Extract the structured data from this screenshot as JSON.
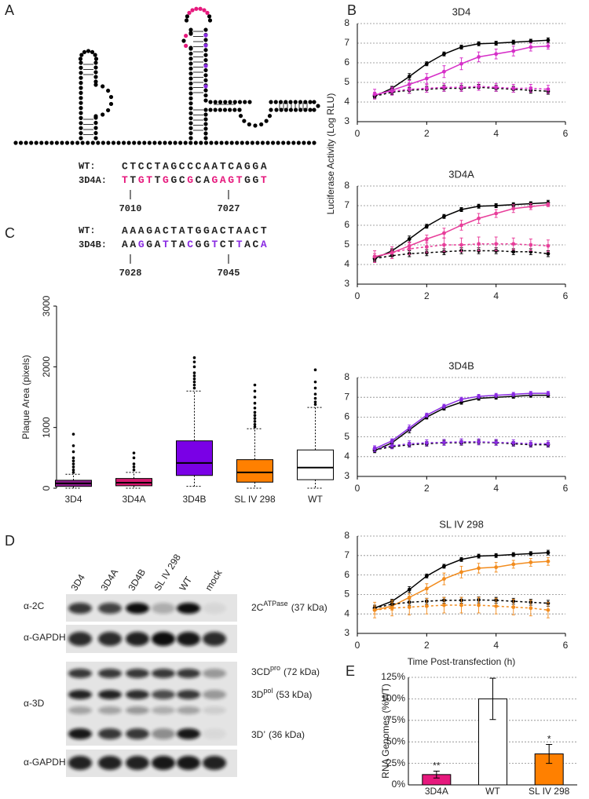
{
  "panel_labels": [
    "A",
    "B",
    "C",
    "D",
    "E"
  ],
  "panel_a": {
    "block_1": {
      "rows": [
        {
          "label": "WT:",
          "sequence": "CTCCTAGCCCAATCAGGA"
        },
        {
          "label": "3D4A:",
          "sequence": "TTGTTGGCGCAGAGTGGT",
          "color": "#e6197d"
        }
      ],
      "start": 7010,
      "end": 7027
    },
    "block_2": {
      "rows": [
        {
          "label": "WT:",
          "sequence": "AAAGACTATGGACTAACT"
        },
        {
          "label": "3D4B:",
          "sequence": "AAGGATTACGGTCTTACA",
          "color": "#8a2be2"
        }
      ],
      "start": 7028,
      "end": 7045
    }
  },
  "panel_d": {
    "lanes": [
      "3D4",
      "3D4A",
      "3D4B",
      "SL IV 298",
      "WT",
      "mock"
    ],
    "antibodies": [
      "α-2C",
      "α-GAPDH",
      "α-3D",
      "α-GAPDH"
    ],
    "bands": [
      {
        "name": "2C",
        "sup": "ATPase",
        "detail": "(37 kDa)"
      },
      {
        "name": "3CD",
        "sup": "pro",
        "detail": "(72 kDa)"
      },
      {
        "name": "3D",
        "sup": "pol",
        "detail": "(53 kDa)"
      },
      {
        "name": "3D’",
        "detail": "(36 kDa)"
      }
    ]
  },
  "chart_data": [
    {
      "type": "line",
      "title": "3D4",
      "ylabel": "Luciferase Activity (Log RLU)",
      "x": [
        0.5,
        1,
        1.5,
        2,
        2.5,
        3,
        3.5,
        4,
        4.5,
        5,
        5.5
      ],
      "xlim": [
        0,
        6
      ],
      "xticks": [
        0,
        2,
        4,
        6
      ],
      "ylim": [
        3,
        8
      ],
      "yticks": [
        3,
        4,
        5,
        6,
        7,
        8
      ],
      "grid": true,
      "series": [
        {
          "color": "#000000",
          "dashed": false,
          "values": [
            4.3,
            4.7,
            5.3,
            5.95,
            6.45,
            6.8,
            6.97,
            7.0,
            7.05,
            7.1,
            7.15
          ],
          "errors": [
            0.1,
            0.1,
            0.15,
            0.1,
            0.1,
            0.1,
            0.1,
            0.1,
            0.1,
            0.1,
            0.12
          ]
        },
        {
          "color": "#d62fc8",
          "dashed": false,
          "values": [
            4.35,
            4.6,
            4.9,
            5.2,
            5.55,
            5.95,
            6.3,
            6.45,
            6.6,
            6.8,
            6.85
          ],
          "errors": [
            0.15,
            0.15,
            0.2,
            0.25,
            0.3,
            0.3,
            0.25,
            0.25,
            0.25,
            0.2,
            0.15
          ]
        },
        {
          "color": "#000000",
          "dashed": true,
          "values": [
            4.3,
            4.5,
            4.6,
            4.65,
            4.7,
            4.7,
            4.75,
            4.7,
            4.65,
            4.6,
            4.55
          ],
          "errors": [
            0.1,
            0.12,
            0.15,
            0.15,
            0.15,
            0.15,
            0.15,
            0.15,
            0.15,
            0.15,
            0.15
          ]
        },
        {
          "color": "#d62fc8",
          "dashed": true,
          "values": [
            4.4,
            4.55,
            4.65,
            4.7,
            4.75,
            4.75,
            4.8,
            4.75,
            4.7,
            4.7,
            4.65
          ],
          "errors": [
            0.25,
            0.2,
            0.2,
            0.2,
            0.2,
            0.2,
            0.2,
            0.2,
            0.2,
            0.2,
            0.2
          ]
        }
      ]
    },
    {
      "type": "line",
      "title": "3D4A",
      "x": [
        0.5,
        1,
        1.5,
        2,
        2.5,
        3,
        3.5,
        4,
        4.5,
        5,
        5.5
      ],
      "xlim": [
        0,
        6
      ],
      "xticks": [
        0,
        2,
        4,
        6
      ],
      "ylim": [
        3,
        8
      ],
      "yticks": [
        3,
        4,
        5,
        6,
        7,
        8
      ],
      "grid": true,
      "series": [
        {
          "color": "#000000",
          "dashed": false,
          "values": [
            4.3,
            4.7,
            5.3,
            5.95,
            6.45,
            6.8,
            6.97,
            7.0,
            7.05,
            7.1,
            7.15
          ],
          "errors": [
            0.1,
            0.1,
            0.15,
            0.1,
            0.1,
            0.1,
            0.1,
            0.1,
            0.1,
            0.1,
            0.12
          ]
        },
        {
          "color": "#e83e9a",
          "dashed": false,
          "values": [
            4.4,
            4.6,
            4.95,
            5.3,
            5.6,
            6.0,
            6.35,
            6.6,
            6.85,
            6.95,
            7.05
          ],
          "errors": [
            0.15,
            0.15,
            0.2,
            0.2,
            0.25,
            0.25,
            0.25,
            0.2,
            0.2,
            0.15,
            0.1
          ]
        },
        {
          "color": "#000000",
          "dashed": true,
          "values": [
            4.3,
            4.45,
            4.55,
            4.6,
            4.65,
            4.7,
            4.7,
            4.7,
            4.65,
            4.65,
            4.55
          ],
          "errors": [
            0.15,
            0.15,
            0.15,
            0.15,
            0.15,
            0.15,
            0.15,
            0.15,
            0.15,
            0.15,
            0.15
          ]
        },
        {
          "color": "#e83e9a",
          "dashed": true,
          "values": [
            4.4,
            4.6,
            4.8,
            4.9,
            5.0,
            5.0,
            5.05,
            5.05,
            5.05,
            5.0,
            4.95
          ],
          "errors": [
            0.3,
            0.3,
            0.3,
            0.3,
            0.35,
            0.35,
            0.35,
            0.35,
            0.3,
            0.3,
            0.3
          ]
        }
      ]
    },
    {
      "type": "line",
      "title": "3D4B",
      "x": [
        0.5,
        1,
        1.5,
        2,
        2.5,
        3,
        3.5,
        4,
        4.5,
        5,
        5.5
      ],
      "xlim": [
        0,
        6
      ],
      "xticks": [
        0,
        2,
        4,
        6
      ],
      "ylim": [
        3,
        8
      ],
      "yticks": [
        3,
        4,
        5,
        6,
        7,
        8
      ],
      "grid": true,
      "series": [
        {
          "color": "#000000",
          "dashed": false,
          "values": [
            4.3,
            4.7,
            5.35,
            6.0,
            6.45,
            6.75,
            6.95,
            7.0,
            7.05,
            7.1,
            7.1
          ],
          "errors": [
            0.1,
            0.1,
            0.15,
            0.1,
            0.1,
            0.1,
            0.1,
            0.1,
            0.1,
            0.1,
            0.1
          ]
        },
        {
          "color": "#8a2be2",
          "dashed": false,
          "values": [
            4.4,
            4.8,
            5.45,
            6.1,
            6.55,
            6.9,
            7.05,
            7.1,
            7.15,
            7.2,
            7.2
          ],
          "errors": [
            0.1,
            0.1,
            0.15,
            0.1,
            0.1,
            0.1,
            0.1,
            0.1,
            0.1,
            0.1,
            0.1
          ]
        },
        {
          "color": "#000000",
          "dashed": true,
          "values": [
            4.35,
            4.5,
            4.6,
            4.65,
            4.7,
            4.7,
            4.72,
            4.7,
            4.65,
            4.6,
            4.6
          ],
          "errors": [
            0.1,
            0.1,
            0.12,
            0.12,
            0.12,
            0.12,
            0.12,
            0.12,
            0.12,
            0.12,
            0.12
          ]
        },
        {
          "color": "#8a2be2",
          "dashed": true,
          "values": [
            4.4,
            4.55,
            4.65,
            4.7,
            4.72,
            4.75,
            4.75,
            4.72,
            4.7,
            4.65,
            4.65
          ],
          "errors": [
            0.15,
            0.15,
            0.15,
            0.15,
            0.15,
            0.15,
            0.15,
            0.15,
            0.15,
            0.15,
            0.15
          ]
        }
      ]
    },
    {
      "type": "line",
      "title": "SL IV 298",
      "xlabel": "Time Post-transfection (h)",
      "x": [
        0.5,
        1,
        1.5,
        2,
        2.5,
        3,
        3.5,
        4,
        4.5,
        5,
        5.5
      ],
      "xlim": [
        0,
        6
      ],
      "xticks": [
        0,
        2,
        4,
        6
      ],
      "ylim": [
        3,
        8
      ],
      "yticks": [
        3,
        4,
        5,
        6,
        7,
        8
      ],
      "grid": true,
      "series": [
        {
          "color": "#000000",
          "dashed": false,
          "values": [
            4.3,
            4.65,
            5.25,
            5.95,
            6.45,
            6.8,
            6.97,
            7.0,
            7.05,
            7.1,
            7.15
          ],
          "errors": [
            0.1,
            0.1,
            0.15,
            0.1,
            0.1,
            0.1,
            0.1,
            0.1,
            0.1,
            0.1,
            0.12
          ]
        },
        {
          "color": "#f28c1e",
          "dashed": false,
          "values": [
            4.2,
            4.4,
            4.85,
            5.3,
            5.8,
            6.15,
            6.35,
            6.4,
            6.55,
            6.65,
            6.7
          ],
          "errors": [
            0.2,
            0.2,
            0.2,
            0.25,
            0.3,
            0.3,
            0.25,
            0.25,
            0.2,
            0.2,
            0.2
          ]
        },
        {
          "color": "#000000",
          "dashed": true,
          "values": [
            4.3,
            4.5,
            4.6,
            4.65,
            4.7,
            4.7,
            4.72,
            4.7,
            4.65,
            4.6,
            4.55
          ],
          "errors": [
            0.15,
            0.15,
            0.15,
            0.15,
            0.15,
            0.15,
            0.15,
            0.15,
            0.15,
            0.15,
            0.15
          ]
        },
        {
          "color": "#f28c1e",
          "dashed": true,
          "values": [
            4.2,
            4.3,
            4.35,
            4.4,
            4.45,
            4.45,
            4.45,
            4.4,
            4.35,
            4.3,
            4.2
          ],
          "errors": [
            0.4,
            0.4,
            0.4,
            0.4,
            0.4,
            0.4,
            0.4,
            0.4,
            0.4,
            0.4,
            0.4
          ]
        }
      ]
    },
    {
      "type": "box",
      "ylabel": "Plaque Area (pixels)",
      "categories": [
        "3D4",
        "3D4A",
        "3D4B",
        "SL IV 298",
        "WT"
      ],
      "colors": [
        "#8e1b8e",
        "#d6186f",
        "#7a00e6",
        "#ff8000",
        "#ffffff"
      ],
      "ylim": [
        0,
        3000
      ],
      "yticks": [
        0,
        1000,
        2000,
        3000
      ],
      "boxes": [
        {
          "whisker_low": 0,
          "q1": 30,
          "median": 80,
          "q3": 130,
          "whisker_high": 230,
          "outliers": [
            260,
            300,
            350,
            400,
            450,
            500,
            600,
            700,
            890
          ]
        },
        {
          "whisker_low": 0,
          "q1": 40,
          "median": 90,
          "q3": 160,
          "whisker_high": 260,
          "outliers": [
            300,
            350,
            400,
            500,
            580
          ]
        },
        {
          "whisker_low": 30,
          "q1": 210,
          "median": 415,
          "q3": 780,
          "whisker_high": 1600,
          "outliers": [
            1650,
            1700,
            1750,
            1800,
            1850,
            1900,
            2000,
            2080,
            2150
          ]
        },
        {
          "whisker_low": 0,
          "q1": 100,
          "median": 260,
          "q3": 470,
          "whisker_high": 980,
          "outliers": [
            1010,
            1050,
            1100,
            1150,
            1200,
            1250,
            1320,
            1400,
            1500,
            1600,
            1700
          ]
        },
        {
          "whisker_low": 0,
          "q1": 140,
          "median": 340,
          "q3": 630,
          "whisker_high": 1330,
          "outliers": [
            1380,
            1420,
            1480,
            1550,
            1650,
            1750,
            1950
          ]
        }
      ]
    },
    {
      "type": "bar",
      "ylabel": "RNA Genomes (%WT)",
      "categories": [
        "3D4A",
        "WT",
        "SL IV 298"
      ],
      "values": [
        12,
        100,
        36
      ],
      "errors": [
        4,
        24,
        11
      ],
      "colors": [
        "#e6197d",
        "#ffffff",
        "#ff8000"
      ],
      "significance": [
        "**",
        null,
        "*"
      ],
      "ylim": [
        0,
        125
      ],
      "yticks": [
        {
          "value": 0,
          "label": "0%"
        },
        {
          "value": 25,
          "label": "25%"
        },
        {
          "value": 50,
          "label": "50%"
        },
        {
          "value": 75,
          "label": "75%"
        },
        {
          "value": 100,
          "label": "100%"
        },
        {
          "value": 125,
          "label": "125%"
        }
      ],
      "grid": true
    }
  ]
}
